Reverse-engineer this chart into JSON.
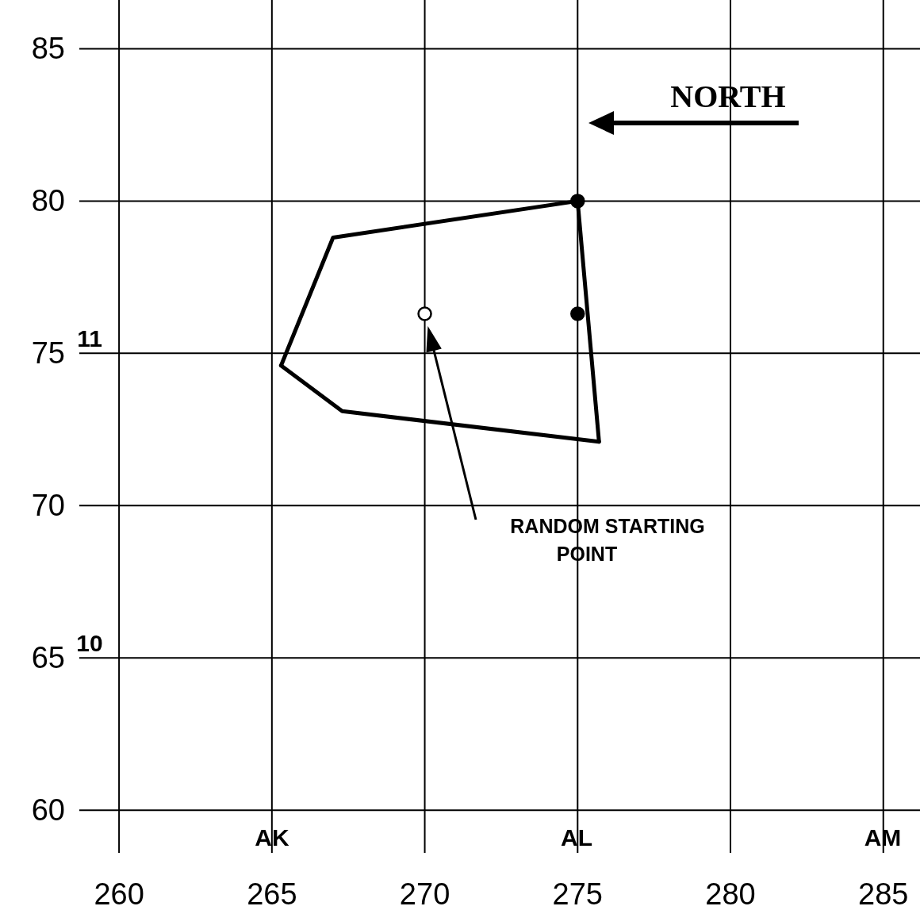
{
  "chart_data": {
    "type": "line",
    "xlim": [
      258.7,
      286.2
    ],
    "ylim": [
      58.6,
      86.6
    ],
    "xticks": [
      260,
      265,
      270,
      275,
      280,
      285
    ],
    "yticks": [
      60,
      65,
      70,
      75,
      80,
      85
    ],
    "y2lim": [
      9.36,
      12.16
    ],
    "y2ticks": [
      10,
      11
    ],
    "grid": true,
    "line_style": "solid",
    "series": [
      {
        "type": "line",
        "color": "#000000",
        "x": [
          265.3,
          267.0,
          275
        ],
        "values": [
          74.6,
          78.8,
          80
        ]
      },
      {
        "type": "line",
        "color": "#000000",
        "x": [
          265.3,
          267.3,
          275.7
        ],
        "values": [
          74.6,
          73.1,
          72.1
        ]
      },
      {
        "type": "line",
        "color": "#000000",
        "x": [
          275,
          275.7
        ],
        "values": [
          80,
          72.1
        ]
      },
      {
        "type": "scatter",
        "marker": "circle",
        "color": "#000000",
        "x": [
          275,
          275
        ],
        "values": [
          80,
          76.3
        ]
      },
      {
        "type": "scatter",
        "marker": "circle",
        "color": "#ffffff",
        "x": [
          270
        ],
        "values": [
          76.3
        ]
      }
    ],
    "annotations": [
      "NORTH",
      "RANDOM STARTING POINT",
      "AK",
      "AL",
      "AM"
    ]
  }
}
